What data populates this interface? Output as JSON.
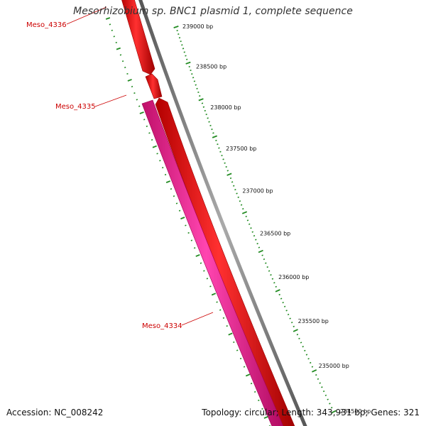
{
  "title": "Mesorhizobium sp. BNC1 plasmid 1, complete sequence",
  "accession": "Accession: NC_008242",
  "summary": "Topology: circular; Length: 343,931 bp; Genes: 321",
  "colors": {
    "forward_gene": "#ff0000",
    "reverse_gene": "#ff1493",
    "backbone": "#808080",
    "ticks": "#228b22",
    "label": "#cc0000"
  },
  "scale_labels": [
    "239000 bp",
    "238500 bp",
    "238000 bp",
    "237500 bp",
    "237000 bp",
    "236500 bp",
    "236000 bp",
    "235500 bp",
    "235000 bp",
    "234500 bp"
  ],
  "genes": [
    {
      "label": "Meso_4336",
      "strand": "forward"
    },
    {
      "label": "Meso_4335",
      "strand": "forward"
    },
    {
      "label": "Meso_4334",
      "strand": "reverse"
    }
  ]
}
